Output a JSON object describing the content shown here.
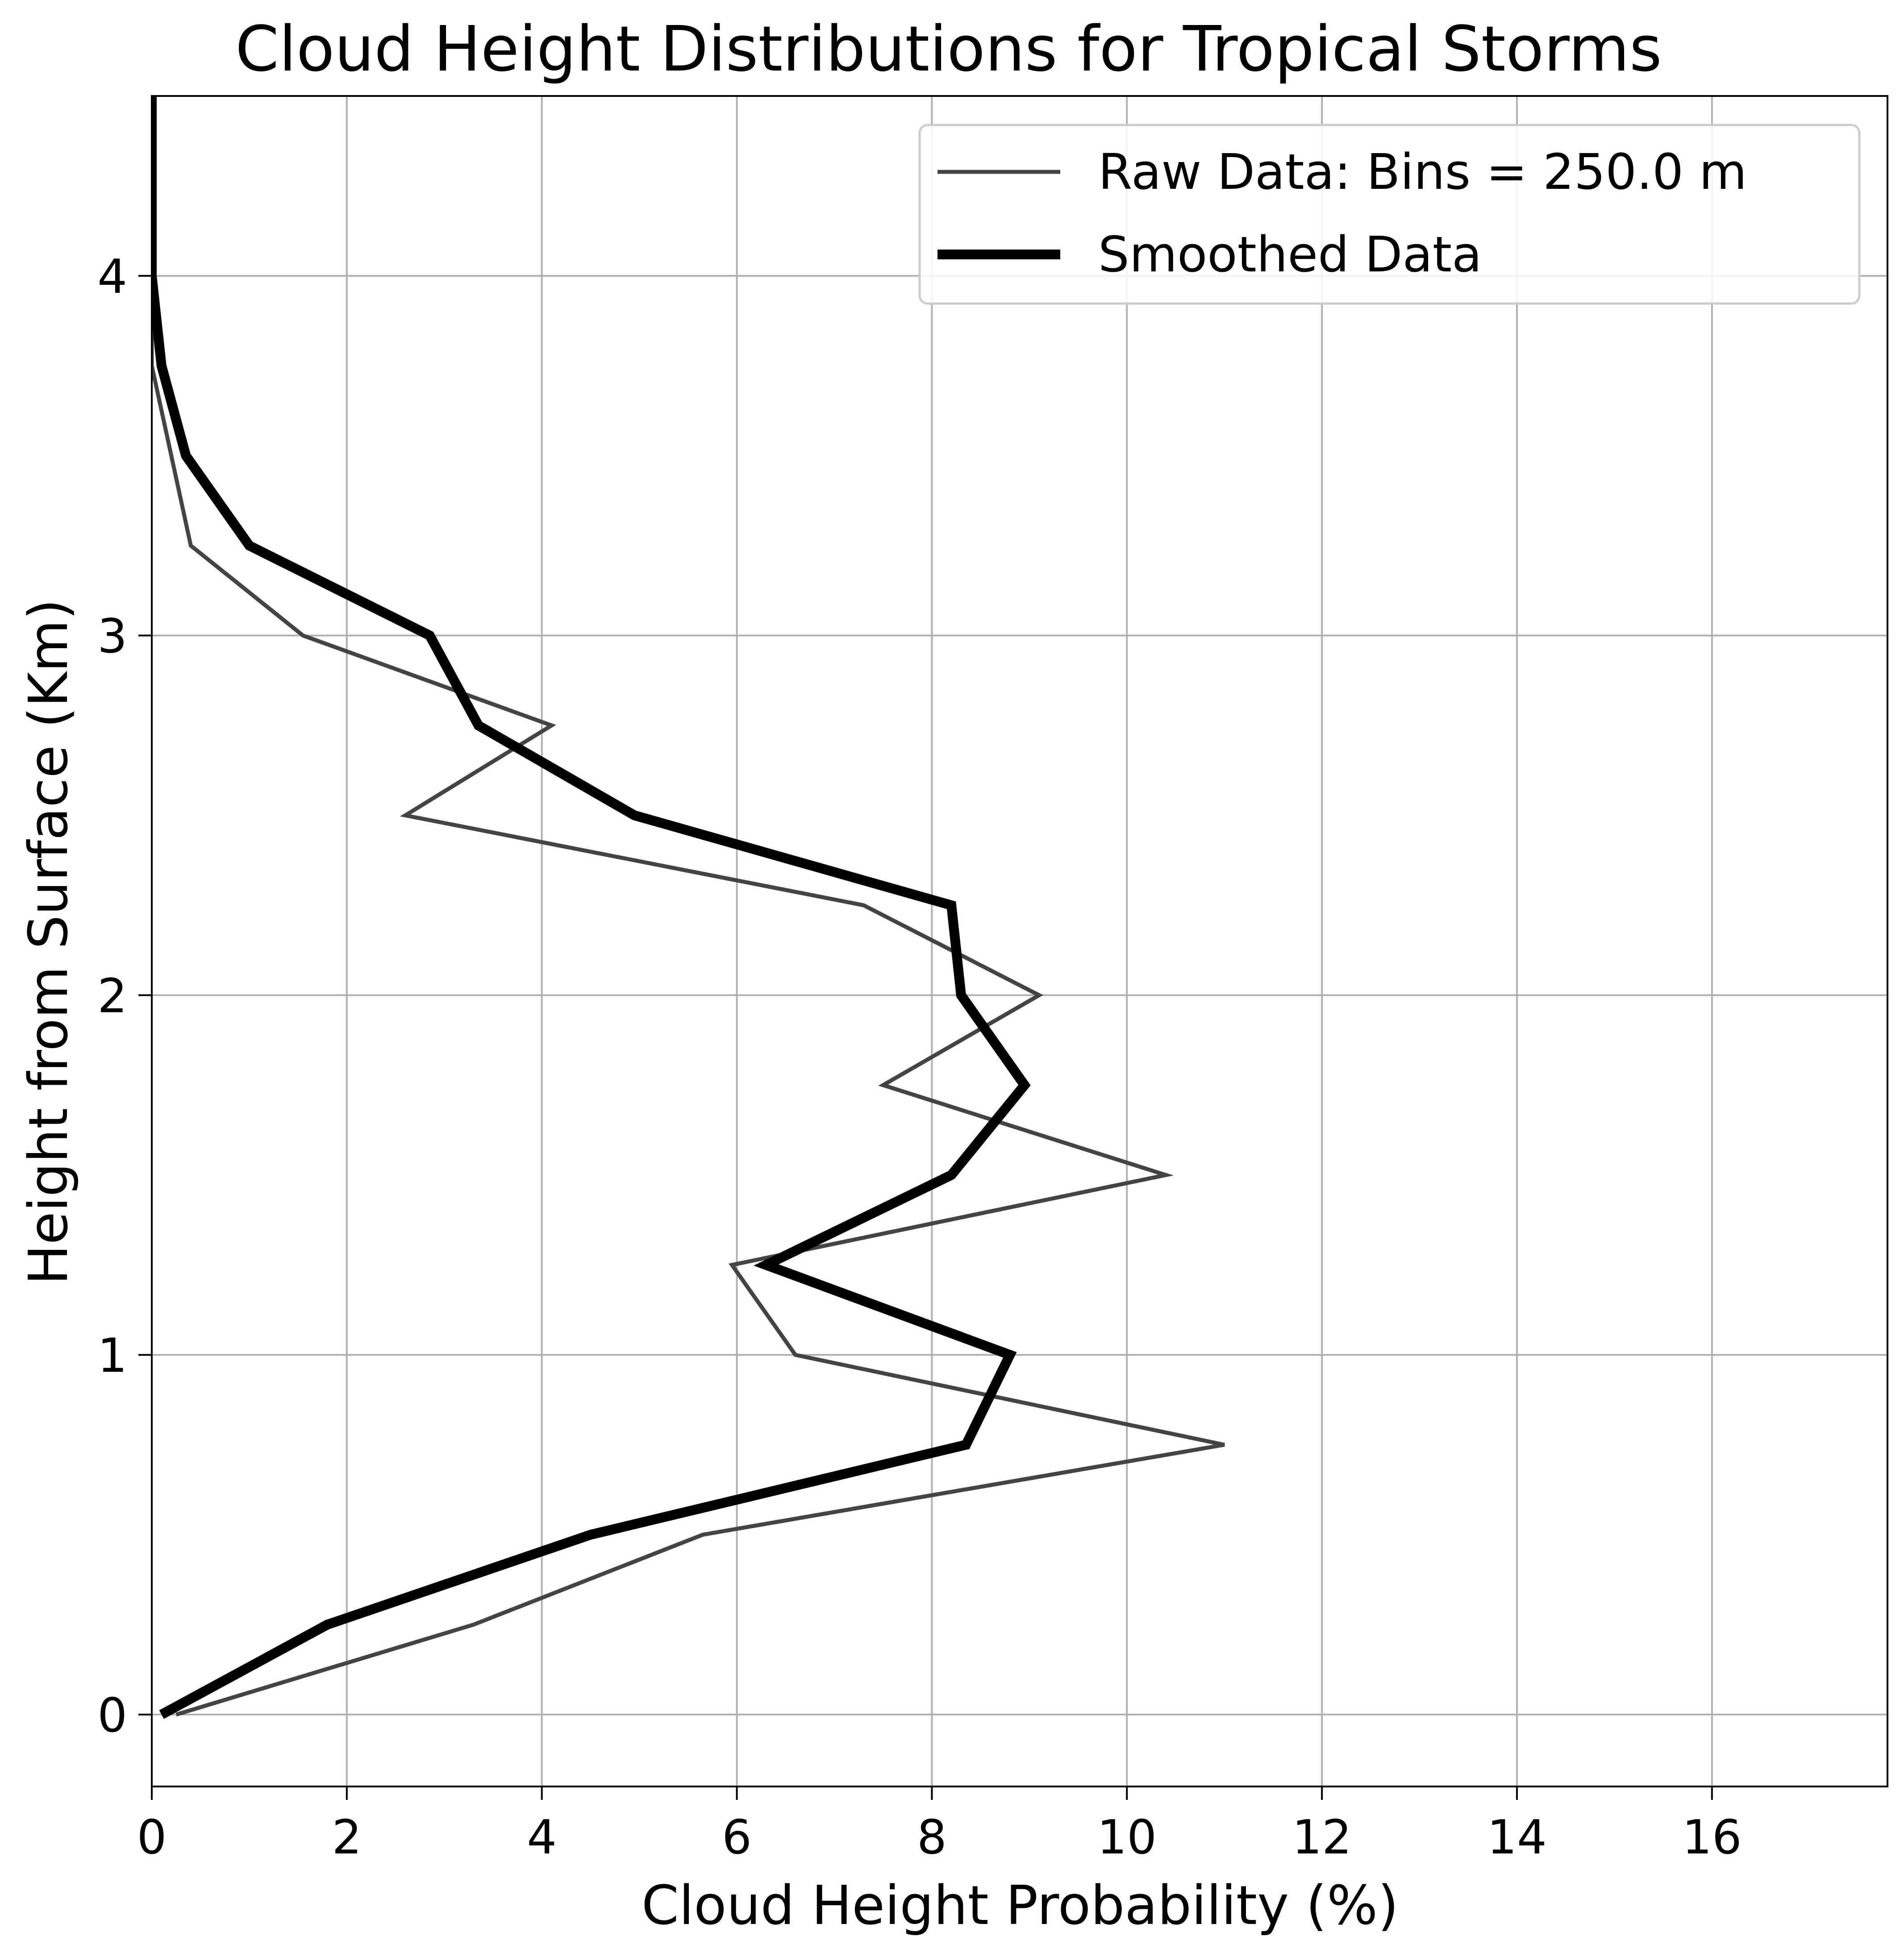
{
  "chart_data": {
    "type": "line",
    "title": "Cloud Height Distributions for Tropical Storms",
    "xlabel": "Cloud Height Probability (%)",
    "ylabel": "Height from Surface (Km)",
    "xlim": [
      0,
      17.8
    ],
    "ylim": [
      -0.2,
      4.5
    ],
    "xticks": [
      0,
      2,
      4,
      6,
      8,
      10,
      12,
      14,
      16
    ],
    "yticks": [
      0,
      1,
      2,
      3,
      4
    ],
    "grid": true,
    "legend_position": "top-right",
    "series": [
      {
        "name": "Raw Data: Bins = 250.0 m",
        "color": "#444444",
        "style": "thin",
        "x": [
          0.25,
          3.3,
          5.65,
          11.0,
          6.6,
          5.95,
          10.4,
          7.5,
          9.1,
          7.3,
          2.6,
          4.1,
          1.55,
          0.4,
          0.0,
          0.0,
          0.0,
          0.0,
          0.0
        ],
        "y": [
          0.0,
          0.25,
          0.5,
          0.75,
          1.0,
          1.25,
          1.5,
          1.75,
          2.0,
          2.25,
          2.5,
          2.75,
          3.0,
          3.25,
          3.75,
          4.0,
          4.25,
          4.5,
          4.75
        ]
      },
      {
        "name": "Smoothed Data",
        "color": "#000000",
        "style": "thick",
        "x": [
          0.1,
          1.8,
          4.5,
          8.35,
          8.8,
          6.3,
          8.2,
          8.95,
          8.3,
          8.2,
          4.95,
          3.35,
          2.85,
          1.0,
          0.35,
          0.1,
          0.0,
          0.0,
          0.0,
          0.0
        ],
        "y": [
          0.0,
          0.25,
          0.5,
          0.75,
          1.0,
          1.25,
          1.5,
          1.75,
          2.0,
          2.25,
          2.5,
          2.75,
          3.0,
          3.25,
          3.5,
          3.75,
          4.0,
          4.25,
          4.5,
          4.75
        ]
      }
    ]
  }
}
